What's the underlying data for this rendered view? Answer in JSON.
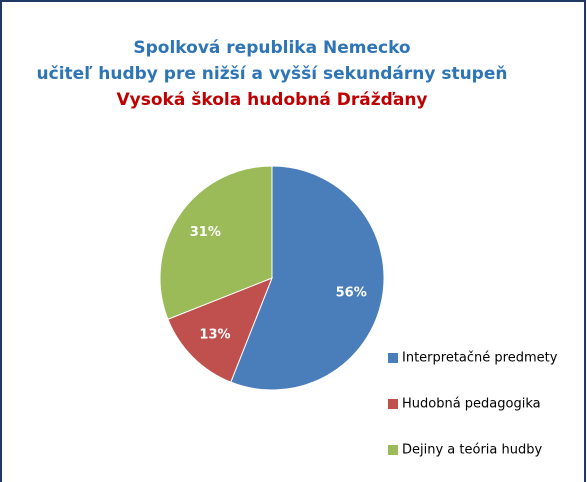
{
  "chart_data": {
    "type": "pie",
    "title": [
      "Spolková republika Nemecko",
      "učiteľ hudby pre nižší a vyšší sekundárny stupeň",
      "Vysoká škola hudobná Drážďany"
    ],
    "title_colors": [
      "#2e75b6",
      "#2e75b6",
      "#c00000"
    ],
    "categories": [
      "Interpretačné predmety",
      "Hudobná pedagogika",
      "Dejiny a teória hudby"
    ],
    "values": [
      56,
      13,
      31
    ],
    "value_labels": [
      "56%",
      "13%",
      "31%"
    ],
    "colors": [
      "#4a7ebb",
      "#c0504d",
      "#9bbb59"
    ],
    "legend": "right"
  }
}
